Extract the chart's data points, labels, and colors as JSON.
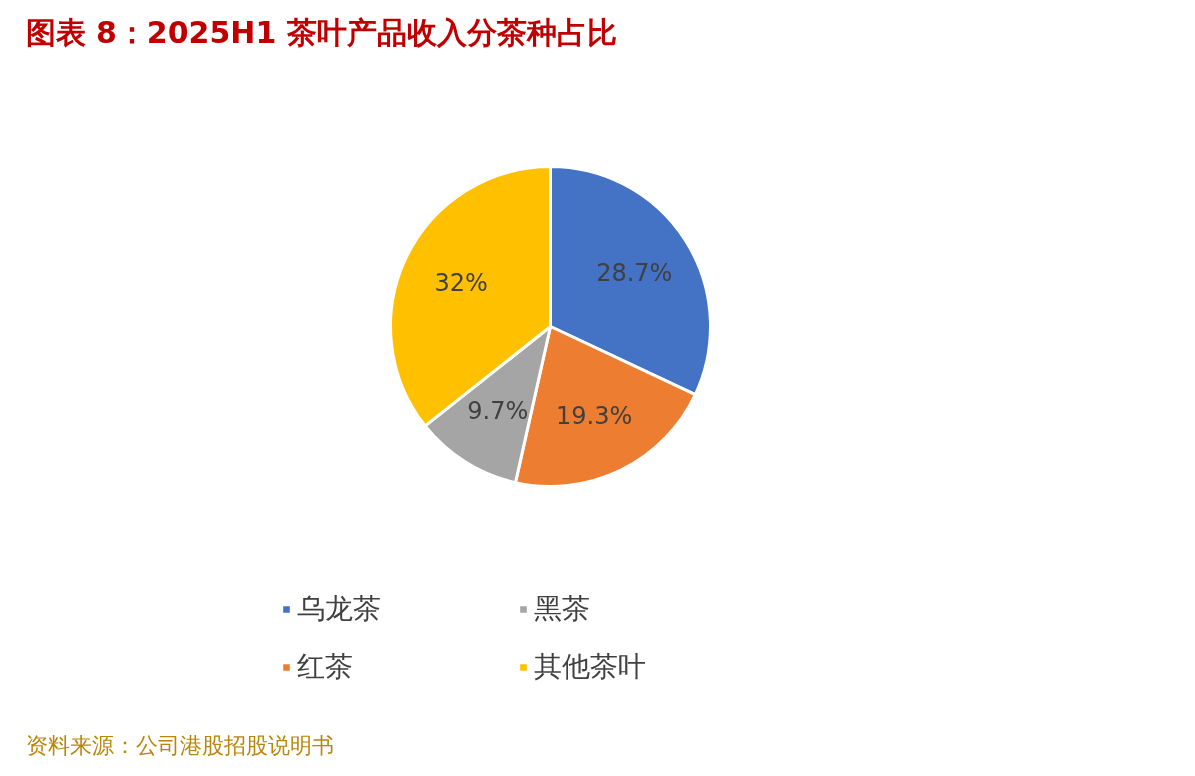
{
  "chart_data": {
    "type": "pie",
    "title": "图表 8：2025H1 茶叶产品收入分茶种占比",
    "categories": [
      "乌龙茶",
      "红茶",
      "黑茶",
      "其他茶叶"
    ],
    "values": [
      28.7,
      19.3,
      9.7,
      32
    ],
    "value_labels": [
      "28.7%",
      "19.3%",
      "9.7%",
      "32%"
    ],
    "colors": [
      "#4472c4",
      "#ed7d31",
      "#a5a5a5",
      "#ffc000"
    ],
    "legend": "bottom",
    "annotations": [
      "资料来源：公司港股招股说明书"
    ]
  }
}
